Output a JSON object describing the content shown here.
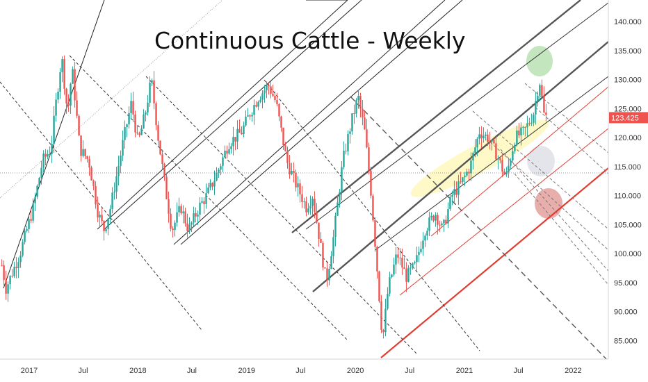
{
  "chart_data": {
    "type": "candlestick",
    "title": "Continuous Cattle - Weekly",
    "x_ticks": [
      "2017",
      "Jul",
      "2018",
      "Jul",
      "2019",
      "Jul",
      "2020",
      "Jul",
      "2021",
      "Jul",
      "2022"
    ],
    "y_ticks": [
      "85.000",
      "90.000",
      "95.000",
      "100.000",
      "105.000",
      "110.000",
      "115.000",
      "120.000",
      "125.000",
      "130.000",
      "135.000",
      "140.000"
    ],
    "ylim": [
      82,
      142
    ],
    "last_price": "123.425",
    "last_price_value": 123.425,
    "grid": false,
    "series": [
      {
        "path": [
          [
            "2016-10-01",
            98
          ],
          [
            "2016-10-15",
            94
          ],
          [
            "2016-12-01",
            100
          ],
          [
            "2017-01-15",
            108
          ],
          [
            "2017-02-15",
            116
          ],
          [
            "2017-03-15",
            118
          ],
          [
            "2017-04-01",
            126
          ],
          [
            "2017-04-20",
            134
          ],
          [
            "2017-05-10",
            124
          ],
          [
            "2017-05-25",
            132
          ],
          [
            "2017-06-20",
            118
          ],
          [
            "2017-07-20",
            116
          ],
          [
            "2017-08-20",
            107
          ],
          [
            "2017-09-10",
            104
          ],
          [
            "2017-10-01",
            108
          ],
          [
            "2017-11-15",
            120
          ],
          [
            "2017-12-10",
            126
          ],
          [
            "2018-01-01",
            119
          ],
          [
            "2018-01-25",
            124
          ],
          [
            "2018-02-15",
            130
          ],
          [
            "2018-03-10",
            120
          ],
          [
            "2018-04-01",
            112
          ],
          [
            "2018-04-25",
            104
          ],
          [
            "2018-05-25",
            108
          ],
          [
            "2018-06-20",
            104
          ],
          [
            "2018-07-25",
            108
          ],
          [
            "2018-08-20",
            110
          ],
          [
            "2018-09-25",
            114
          ],
          [
            "2018-11-01",
            119
          ],
          [
            "2018-12-15",
            121
          ],
          [
            "2019-01-10",
            124
          ],
          [
            "2019-02-10",
            127
          ],
          [
            "2019-03-15",
            129
          ],
          [
            "2019-04-10",
            126
          ],
          [
            "2019-05-15",
            116
          ],
          [
            "2019-06-15",
            112
          ],
          [
            "2019-07-20",
            108
          ],
          [
            "2019-08-10",
            110
          ],
          [
            "2019-09-01",
            103
          ],
          [
            "2019-09-25",
            95
          ],
          [
            "2019-10-20",
            103
          ],
          [
            "2019-11-20",
            116
          ],
          [
            "2019-12-20",
            123
          ],
          [
            "2020-01-10",
            127
          ],
          [
            "2020-02-01",
            121
          ],
          [
            "2020-02-20",
            112
          ],
          [
            "2020-03-10",
            100
          ],
          [
            "2020-04-01",
            85
          ],
          [
            "2020-04-20",
            94
          ],
          [
            "2020-05-20",
            100
          ],
          [
            "2020-06-20",
            96
          ],
          [
            "2020-07-20",
            98
          ],
          [
            "2020-08-20",
            104
          ],
          [
            "2020-09-25",
            107
          ],
          [
            "2020-10-20",
            104
          ],
          [
            "2020-11-20",
            110
          ],
          [
            "2020-12-20",
            112
          ],
          [
            "2021-01-20",
            115
          ],
          [
            "2021-02-20",
            121
          ],
          [
            "2021-03-20",
            120
          ],
          [
            "2021-04-20",
            117
          ],
          [
            "2021-05-20",
            113
          ],
          [
            "2021-06-20",
            120
          ],
          [
            "2021-07-20",
            121
          ],
          [
            "2021-08-20",
            124
          ],
          [
            "2021-09-10",
            130
          ],
          [
            "2021-09-25",
            124
          ],
          [
            "2021-10-05",
            123.425
          ]
        ]
      }
    ]
  }
}
